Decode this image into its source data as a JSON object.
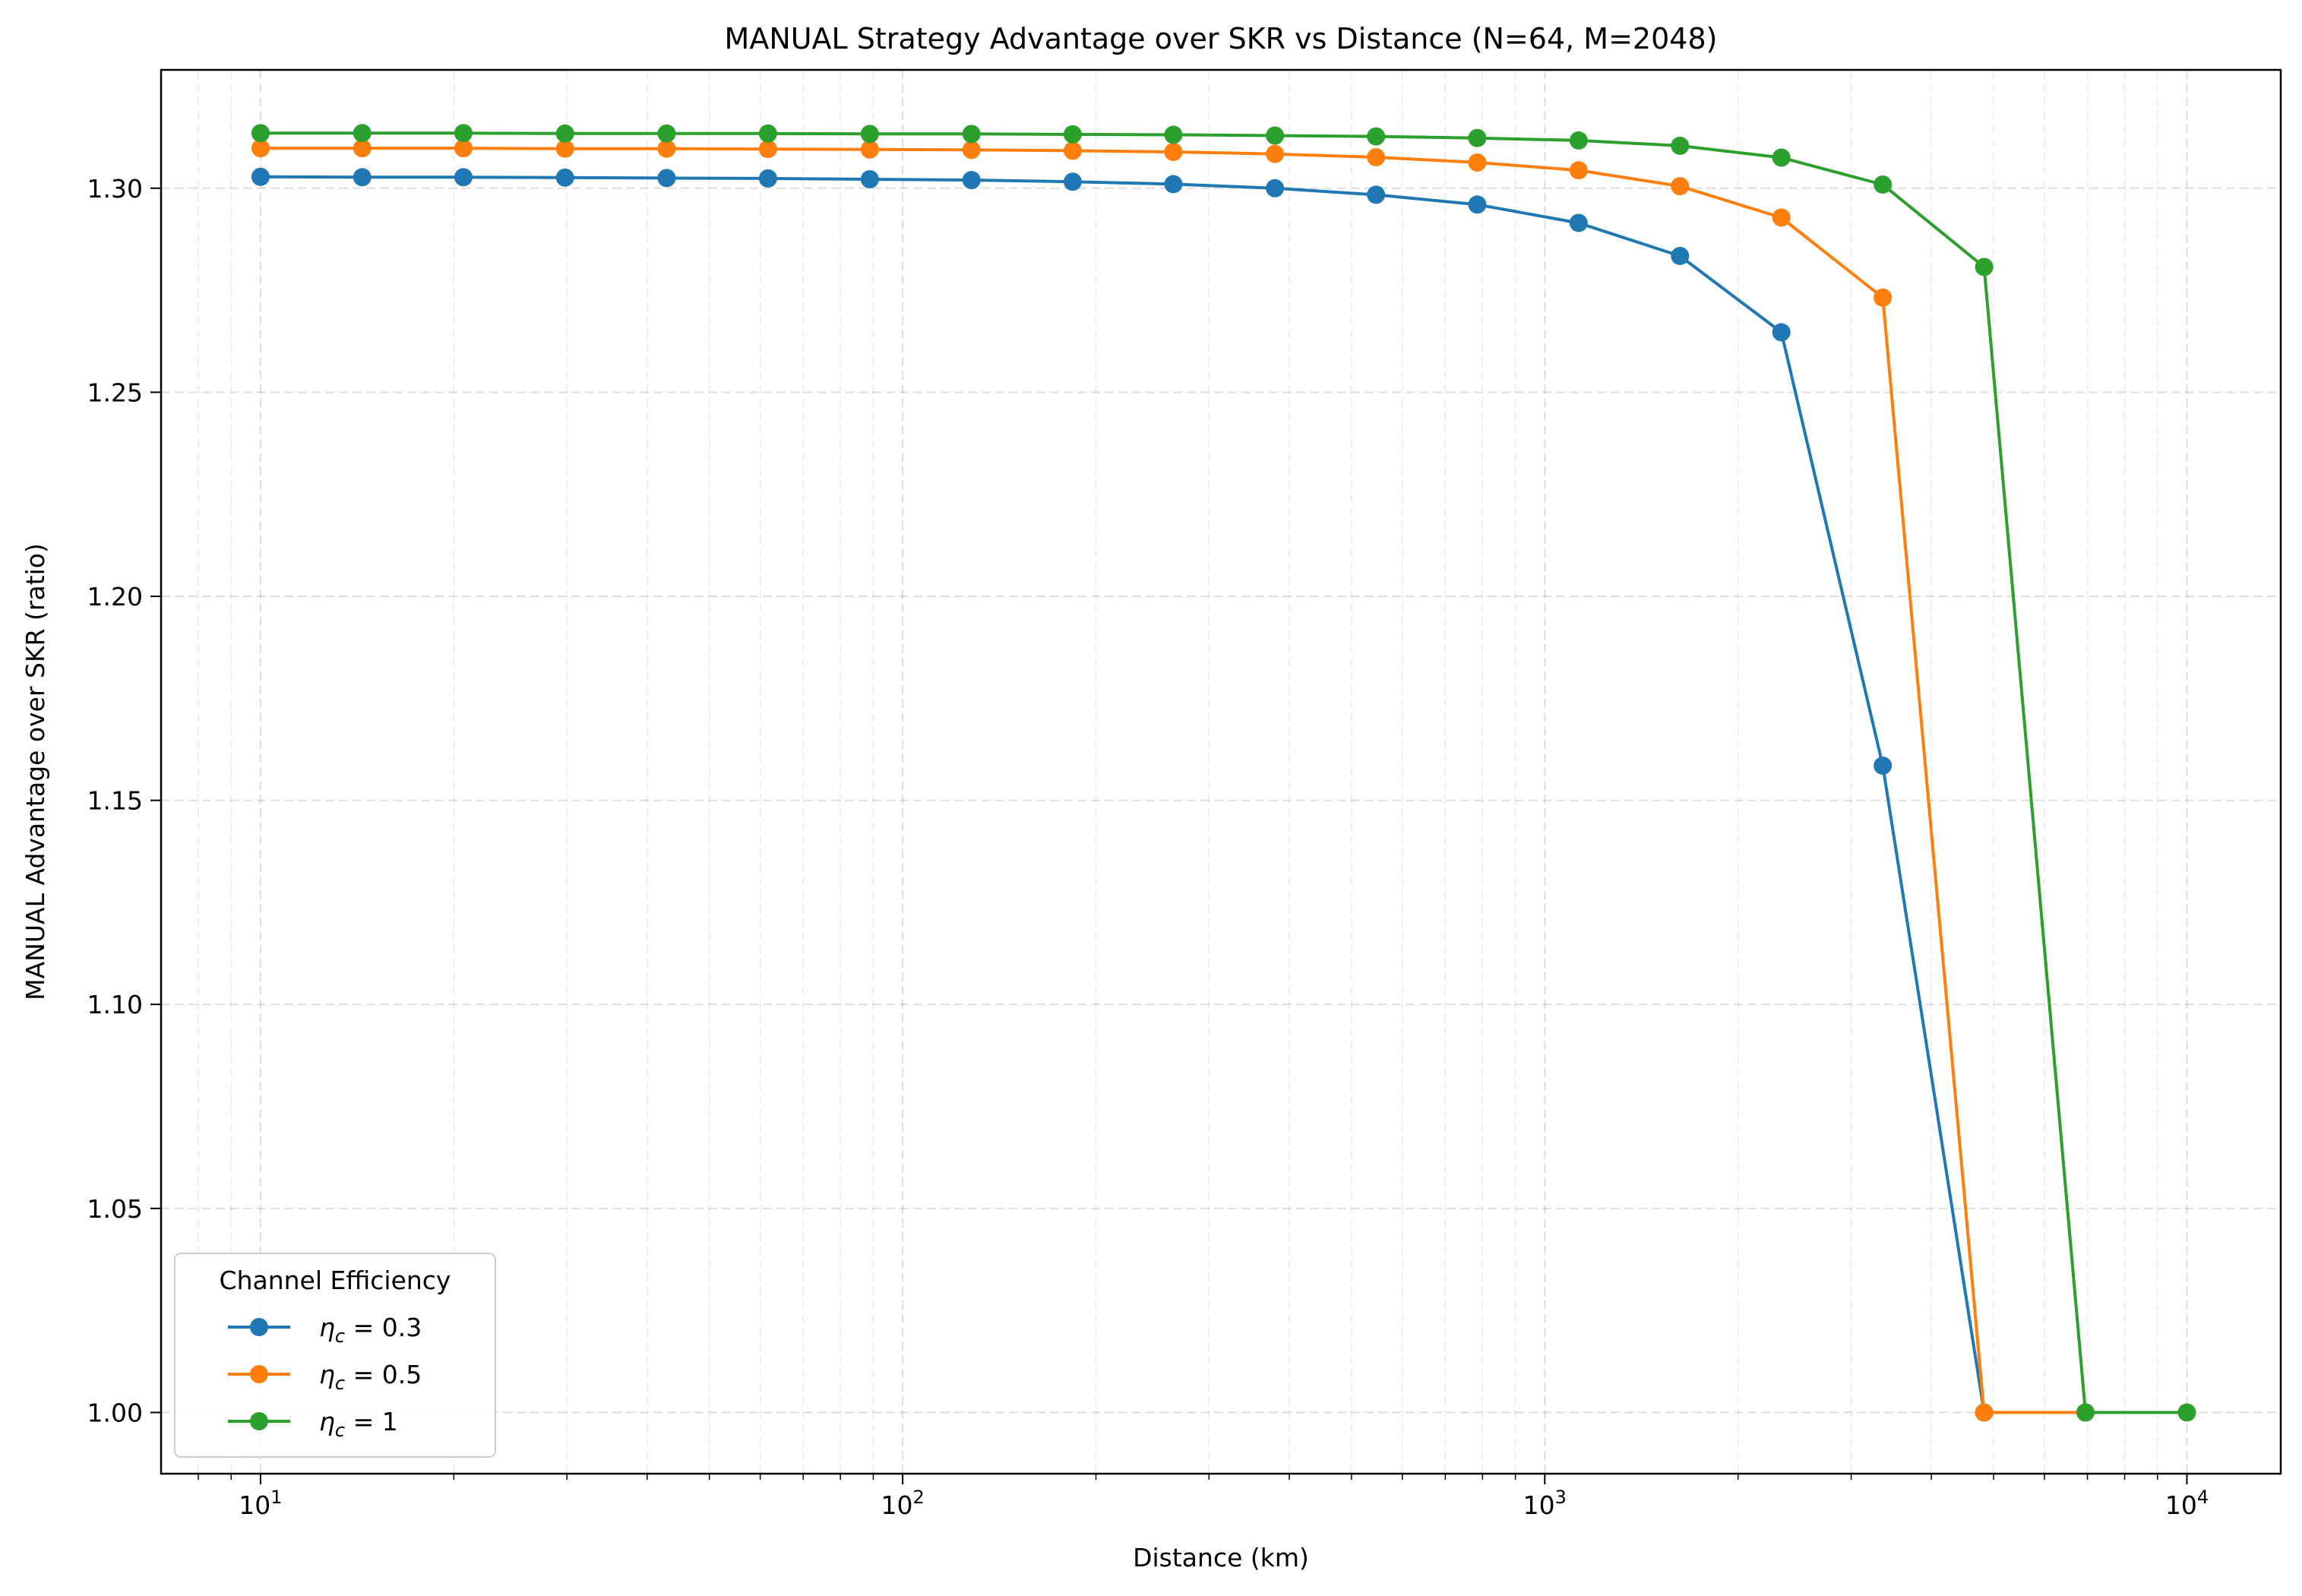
{
  "chart_data": {
    "type": "line",
    "title": "MANUAL Strategy Advantage over SKR vs Distance (N=64, M=2048)",
    "xlabel": "Distance (km)",
    "ylabel": "MANUAL Advantage over SKR (ratio)",
    "xscale": "log",
    "xlim": [
      7,
      14000
    ],
    "ylim": [
      0.985,
      1.329
    ],
    "grid": true,
    "x_ticks": [
      {
        "value": 10,
        "base": "10",
        "exp": "1"
      },
      {
        "value": 100,
        "base": "10",
        "exp": "2"
      },
      {
        "value": 1000,
        "base": "10",
        "exp": "3"
      },
      {
        "value": 10000,
        "base": "10",
        "exp": "4"
      }
    ],
    "y_ticks": [
      {
        "value": 1.0,
        "label": "1.00"
      },
      {
        "value": 1.05,
        "label": "1.05"
      },
      {
        "value": 1.1,
        "label": "1.10"
      },
      {
        "value": 1.15,
        "label": "1.15"
      },
      {
        "value": 1.2,
        "label": "1.20"
      },
      {
        "value": 1.25,
        "label": "1.25"
      },
      {
        "value": 1.3,
        "label": "1.30"
      }
    ],
    "legend": {
      "title": "Channel Efficiency",
      "placement": "lower left"
    },
    "series": [
      {
        "name": "η_c = 0.3",
        "legend_main": "η",
        "legend_sub": "c",
        "legend_rest": " = 0.3",
        "color": "#1f77b4",
        "x": [
          10,
          14.4,
          20.7,
          29.8,
          42.9,
          61.7,
          88.9,
          128,
          184,
          264,
          380,
          546,
          785,
          1129,
          1624,
          2336,
          3360,
          4833
        ],
        "y": [
          1.3028,
          1.3027,
          1.3027,
          1.3026,
          1.3025,
          1.3024,
          1.3022,
          1.302,
          1.3016,
          1.301,
          1.3,
          1.2984,
          1.296,
          1.2915,
          1.2834,
          1.2647,
          1.1585,
          1.0
        ]
      },
      {
        "name": "η_c = 0.5",
        "legend_main": "η",
        "legend_sub": "c",
        "legend_rest": " = 0.5",
        "color": "#ff7f0e",
        "x": [
          10,
          14.4,
          20.7,
          29.8,
          42.9,
          61.7,
          88.9,
          128,
          184,
          264,
          380,
          546,
          785,
          1129,
          1624,
          2336,
          3360,
          4833,
          6952
        ],
        "y": [
          1.3098,
          1.3098,
          1.3098,
          1.3097,
          1.3097,
          1.3096,
          1.3095,
          1.3094,
          1.3092,
          1.3089,
          1.3084,
          1.3076,
          1.3063,
          1.3044,
          1.3005,
          1.2928,
          1.2732,
          1.0,
          1.0
        ]
      },
      {
        "name": "η_c = 1",
        "legend_main": "η",
        "legend_sub": "c",
        "legend_rest": " = 1",
        "color": "#2ca02c",
        "x": [
          10,
          14.4,
          20.7,
          29.8,
          42.9,
          61.7,
          88.9,
          128,
          184,
          264,
          380,
          546,
          785,
          1129,
          1624,
          2336,
          3360,
          4833,
          6952,
          10000
        ],
        "y": [
          1.3135,
          1.3135,
          1.3135,
          1.3134,
          1.3134,
          1.3134,
          1.3133,
          1.3133,
          1.3132,
          1.3131,
          1.3129,
          1.3127,
          1.3123,
          1.3117,
          1.3104,
          1.3075,
          1.3009,
          1.2807,
          1.0,
          1.0
        ]
      }
    ]
  }
}
